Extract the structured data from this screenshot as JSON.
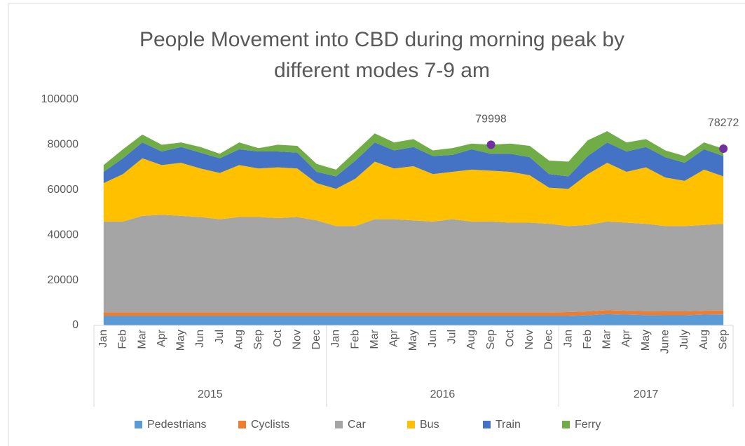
{
  "chart_data": {
    "type": "stacked_area",
    "title": "People Movement into CBD during morning peak by different modes 7-9 am",
    "categories": [
      "Jan",
      "Feb",
      "Mar",
      "Apr",
      "May",
      "Jun",
      "Jul",
      "Aug",
      "Sep",
      "Oct",
      "Nov",
      "Dec",
      "Jan",
      "Feb",
      "Mar",
      "Apr",
      "May",
      "Jun",
      "Jul",
      "Aug",
      "Sep",
      "Oct",
      "Nov",
      "Dec",
      "Jan",
      "Feb",
      "Mar",
      "Apr",
      "May",
      "June",
      "July",
      "Aug",
      "Sep"
    ],
    "year_groups": [
      {
        "name": "2015",
        "count": 12
      },
      {
        "name": "2016",
        "count": 12
      },
      {
        "name": "2017",
        "count": 9
      }
    ],
    "series": [
      {
        "name": "Pedestrians",
        "color": "#5b9bd5",
        "values": [
          4200,
          4200,
          4200,
          4200,
          4200,
          4200,
          4200,
          4200,
          4200,
          4200,
          4200,
          4200,
          4200,
          4200,
          4200,
          4200,
          4200,
          4200,
          4200,
          4200,
          4200,
          4200,
          4200,
          4200,
          4200,
          4500,
          5000,
          4800,
          4600,
          4500,
          4500,
          4800,
          4900
        ]
      },
      {
        "name": "Cyclists",
        "color": "#ed7d31",
        "values": [
          1600,
          1600,
          1600,
          1600,
          1600,
          1600,
          1600,
          1600,
          1600,
          1600,
          1600,
          1600,
          1600,
          1600,
          1600,
          1600,
          1600,
          1600,
          1600,
          1600,
          1600,
          1600,
          1600,
          1600,
          1700,
          1700,
          1700,
          1700,
          1700,
          1700,
          1700,
          1700,
          1700
        ]
      },
      {
        "name": "Car",
        "color": "#a5a5a5",
        "values": [
          40200,
          40200,
          42700,
          43200,
          42700,
          42200,
          41200,
          42200,
          42200,
          41700,
          42200,
          40700,
          38200,
          38200,
          41200,
          41200,
          40700,
          40200,
          41200,
          40200,
          40200,
          39700,
          39700,
          39200,
          38100,
          38300,
          39300,
          39000,
          38700,
          37800,
          37800,
          38000,
          38400
        ]
      },
      {
        "name": "Bus",
        "color": "#ffc000",
        "values": [
          17000,
          21000,
          25500,
          22000,
          23500,
          21500,
          20500,
          23000,
          21500,
          22500,
          21500,
          16500,
          16500,
          21000,
          25500,
          22500,
          24000,
          21000,
          21000,
          23000,
          22500,
          22500,
          21000,
          16000,
          16500,
          22500,
          26000,
          22500,
          25000,
          21500,
          20000,
          24500,
          21000
        ]
      },
      {
        "name": "Train",
        "color": "#4472c4",
        "values": [
          5000,
          7000,
          7000,
          6000,
          7000,
          7000,
          6500,
          7000,
          7500,
          7000,
          7000,
          5000,
          5500,
          8000,
          8500,
          8000,
          8500,
          8000,
          7500,
          9000,
          7500,
          8000,
          8000,
          6000,
          5500,
          8000,
          9000,
          9000,
          9000,
          9000,
          8000,
          9000,
          9000
        ]
      },
      {
        "name": "Ferry",
        "color": "#70ad47",
        "values": [
          3000,
          4000,
          3500,
          3000,
          2000,
          2500,
          2000,
          3000,
          1500,
          3000,
          3000,
          3500,
          3000,
          4000,
          4000,
          3500,
          3500,
          2500,
          3000,
          2500,
          3998,
          4500,
          5000,
          6000,
          6500,
          7000,
          5000,
          4000,
          3500,
          3000,
          3000,
          3000,
          3272
        ]
      }
    ],
    "annotations": [
      {
        "point": 20,
        "value": 79998,
        "color": "#7030a0"
      },
      {
        "point": 32,
        "value": 78272,
        "color": "#7030a0"
      }
    ],
    "ylim": [
      0,
      100000
    ],
    "yticks": [
      0,
      20000,
      40000,
      60000,
      80000,
      100000
    ],
    "grid": false
  }
}
